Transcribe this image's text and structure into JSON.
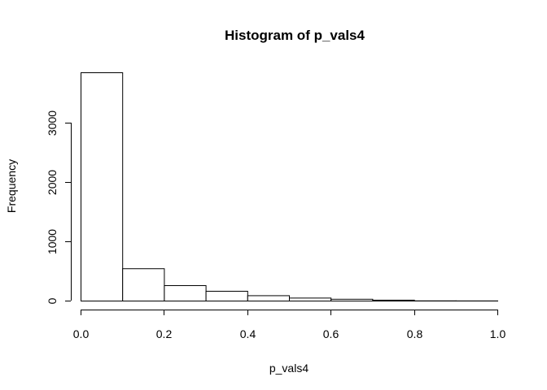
{
  "chart_data": {
    "type": "bar",
    "title": "Histogram of p_vals4",
    "xlabel": "p_vals4",
    "ylabel": "Frequency",
    "bins": [
      {
        "from": 0.0,
        "to": 0.1,
        "count": 3850
      },
      {
        "from": 0.1,
        "to": 0.2,
        "count": 545
      },
      {
        "from": 0.2,
        "to": 0.3,
        "count": 260
      },
      {
        "from": 0.3,
        "to": 0.4,
        "count": 165
      },
      {
        "from": 0.4,
        "to": 0.5,
        "count": 90
      },
      {
        "from": 0.5,
        "to": 0.6,
        "count": 50
      },
      {
        "from": 0.6,
        "to": 0.7,
        "count": 30
      },
      {
        "from": 0.7,
        "to": 0.8,
        "count": 15
      },
      {
        "from": 0.8,
        "to": 0.9,
        "count": 3
      },
      {
        "from": 0.9,
        "to": 1.0,
        "count": 2
      }
    ],
    "xlim": [
      0.0,
      1.0
    ],
    "ylim": [
      0,
      3850
    ],
    "x_ticks": [
      "0.0",
      "0.2",
      "0.4",
      "0.6",
      "0.8",
      "1.0"
    ],
    "y_ticks": [
      "0",
      "1000",
      "2000",
      "3000"
    ],
    "grid": false,
    "bar_fill": "#ffffff",
    "bar_stroke": "#000000"
  }
}
